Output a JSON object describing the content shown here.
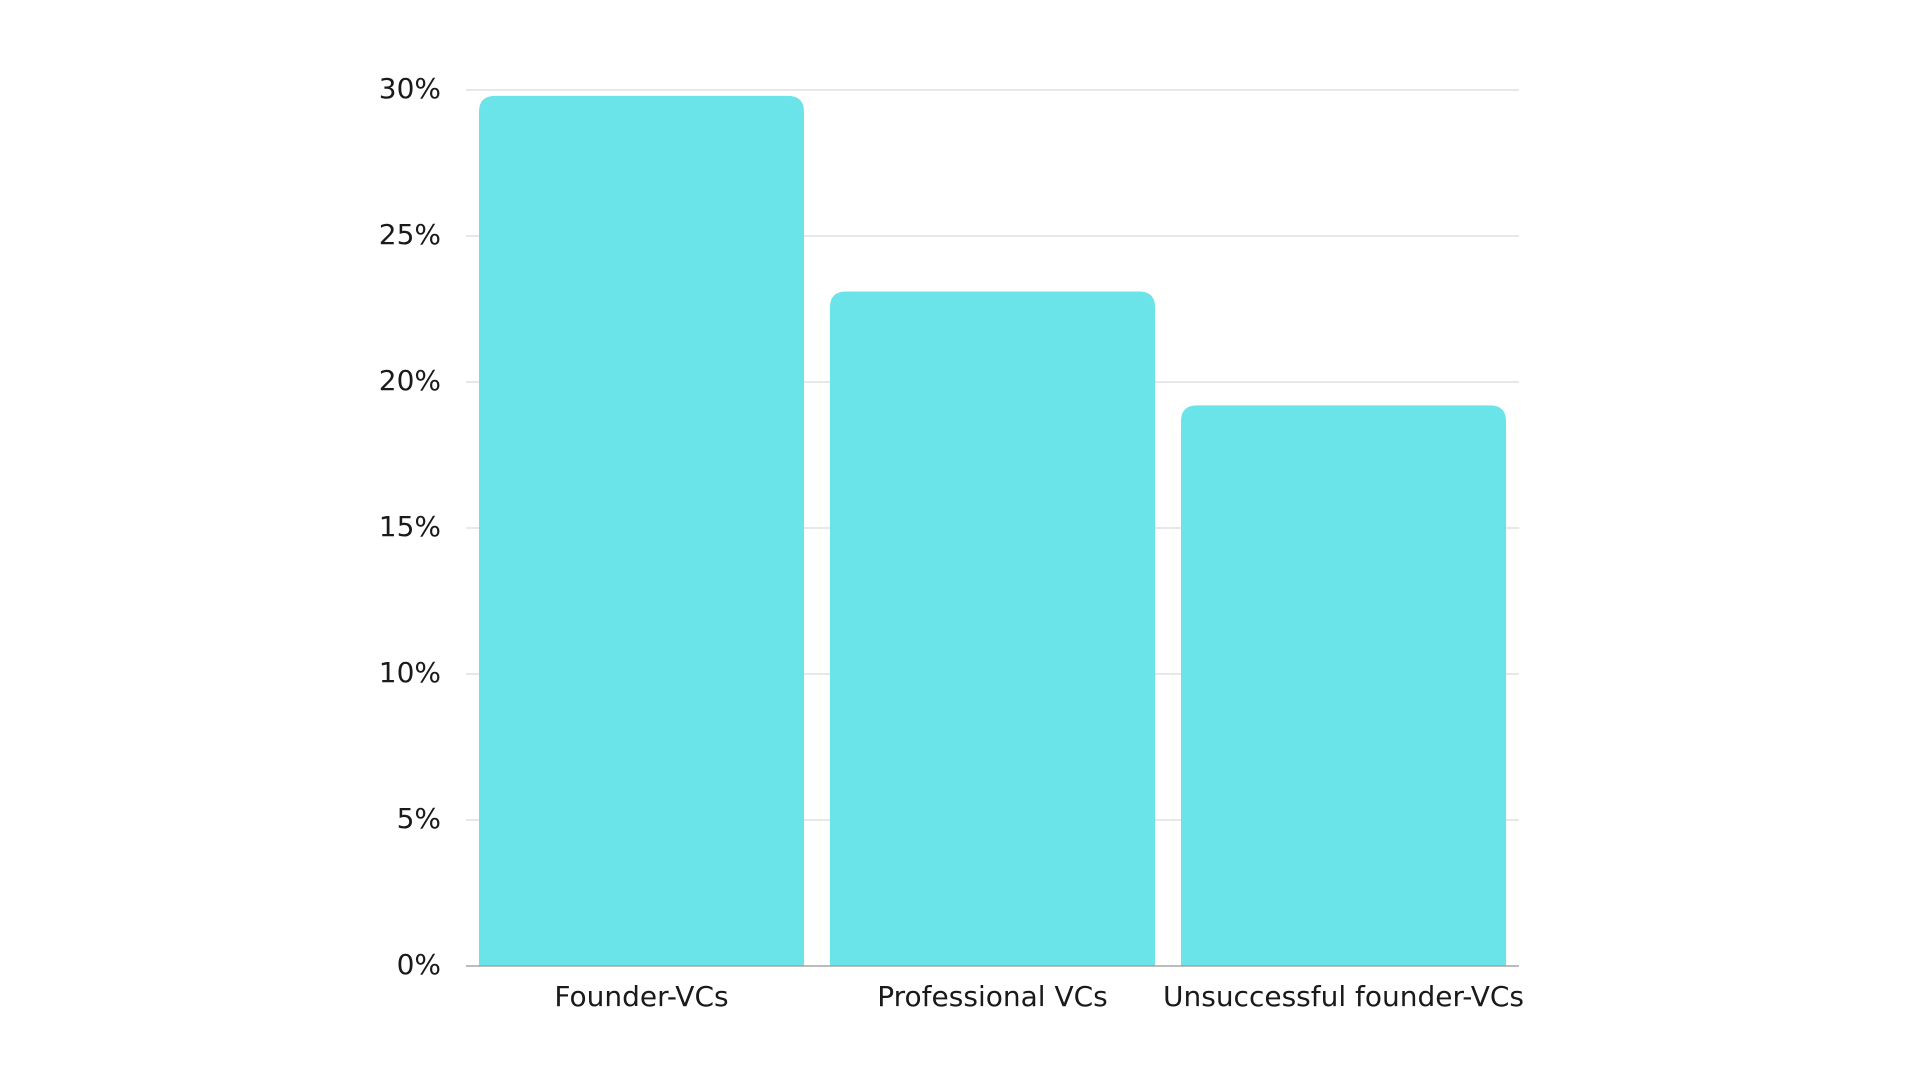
{
  "chart_data": {
    "type": "bar",
    "categories": [
      "Founder-VCs",
      "Professional VCs",
      "Unsuccessful founder-VCs"
    ],
    "values": [
      29.8,
      23.1,
      19.2
    ],
    "color": "#6ae4e8",
    "ylim": [
      0,
      30
    ],
    "yticks": [
      {
        "value": 0,
        "label": "0%"
      },
      {
        "value": 5,
        "label": "5%"
      },
      {
        "value": 10,
        "label": "10%"
      },
      {
        "value": 15,
        "label": "15%"
      },
      {
        "value": 20,
        "label": "20%"
      },
      {
        "value": 25,
        "label": "25%"
      },
      {
        "value": 30,
        "label": "30%"
      }
    ],
    "grid": true
  }
}
